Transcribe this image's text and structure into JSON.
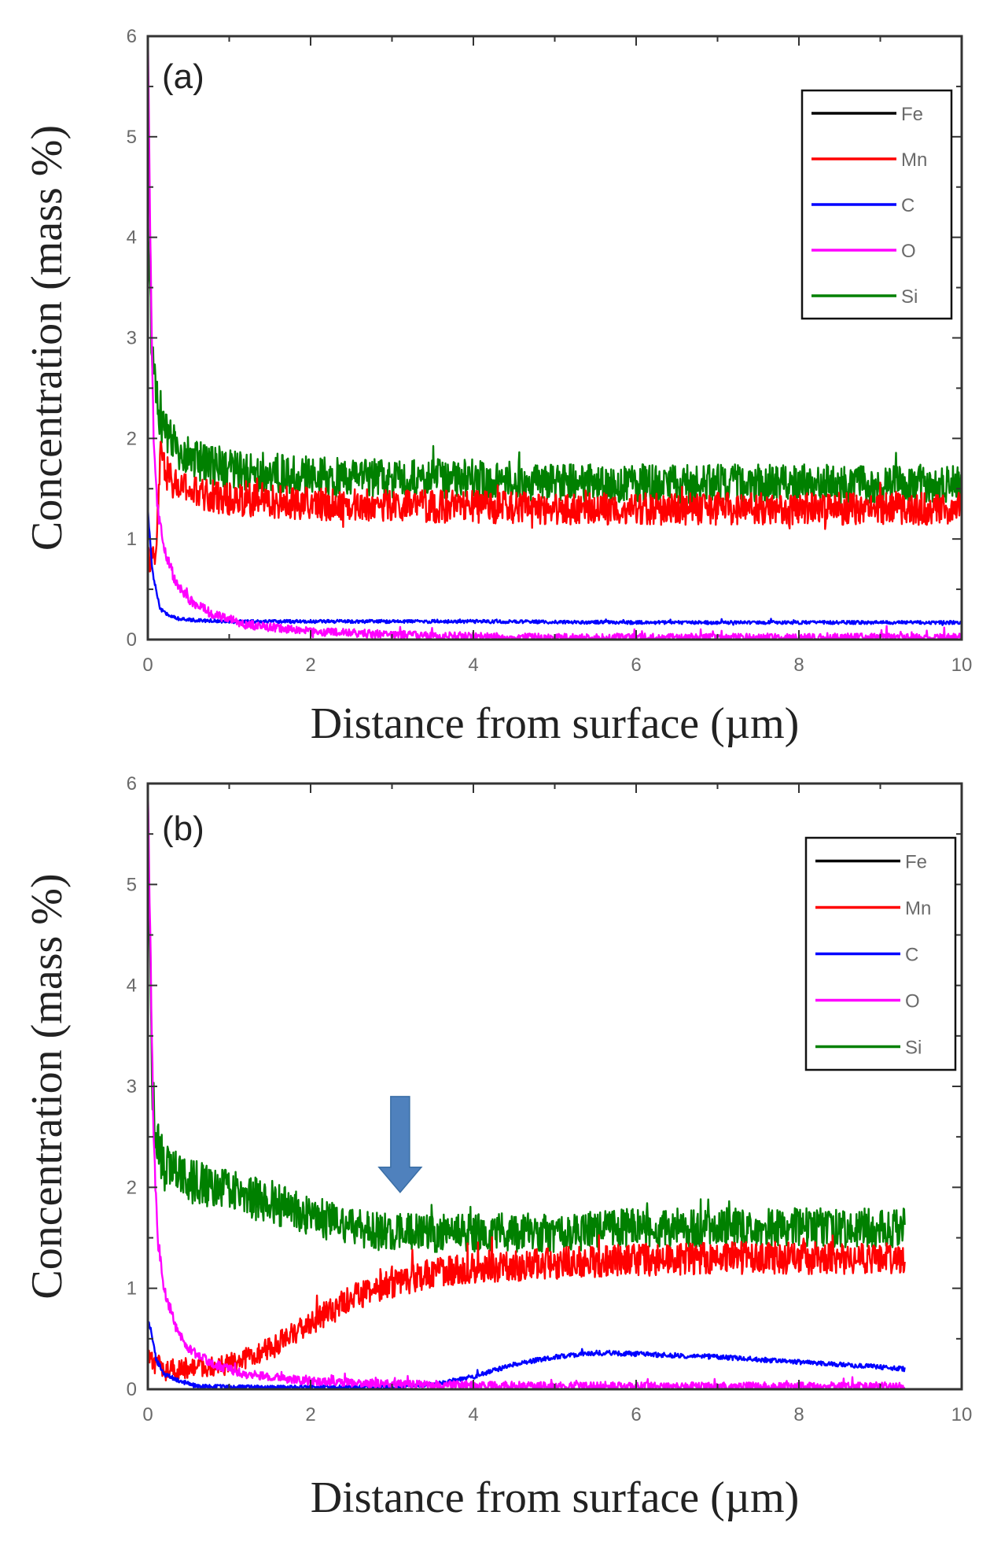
{
  "chart_data": [
    {
      "type": "line",
      "panel_label": "(a)",
      "xlabel": "Distance from surface (µm)",
      "ylabel": "Concentration (mass %)",
      "xlim": [
        0,
        10
      ],
      "ylim": [
        0,
        6
      ],
      "xticks": [
        "0",
        "2",
        "4",
        "6",
        "8",
        "10"
      ],
      "yticks": [
        "0",
        "1",
        "2",
        "3",
        "4",
        "5",
        "6"
      ],
      "legend_position": "top-right",
      "series": [
        {
          "name": "Fe",
          "color": "#000000",
          "x": [
            0,
            0.02,
            0.05
          ],
          "y": [
            6.0,
            6.0,
            6.0
          ]
        },
        {
          "name": "Mn",
          "color": "#ff0000",
          "x": [
            0.1,
            0.15,
            0.3,
            0.6,
            1,
            2,
            3,
            4,
            5,
            6,
            7,
            8,
            9,
            10
          ],
          "y": [
            0.8,
            1.8,
            1.55,
            1.45,
            1.4,
            1.35,
            1.33,
            1.32,
            1.3,
            1.3,
            1.3,
            1.3,
            1.3,
            1.3
          ],
          "noise": 0.09
        },
        {
          "name": "C",
          "color": "#0000ff",
          "x": [
            0,
            0.03,
            0.06,
            0.1,
            0.15,
            0.25,
            0.4,
            1,
            2,
            4,
            6,
            8,
            10
          ],
          "y": [
            1.3,
            0.95,
            0.65,
            0.5,
            0.3,
            0.25,
            0.2,
            0.18,
            0.18,
            0.18,
            0.17,
            0.17,
            0.17
          ],
          "noise": 0.015
        },
        {
          "name": "O",
          "color": "#ff00ff",
          "x": [
            0,
            0.03,
            0.07,
            0.12,
            0.2,
            0.35,
            0.5,
            0.8,
            1.2,
            2,
            3,
            4,
            5,
            6,
            8,
            10
          ],
          "y": [
            6.0,
            4.0,
            2.0,
            1.3,
            0.9,
            0.55,
            0.4,
            0.25,
            0.15,
            0.08,
            0.05,
            0.03,
            0.02,
            0.02,
            0.02,
            0.02
          ],
          "noise": 0.04
        },
        {
          "name": "Si",
          "color": "#008000",
          "x": [
            0,
            0.05,
            0.1,
            0.2,
            0.4,
            0.7,
            1,
            2,
            3,
            4,
            5,
            6,
            7,
            8,
            9,
            10
          ],
          "y": [
            4.2,
            2.9,
            2.4,
            2.05,
            1.85,
            1.75,
            1.7,
            1.62,
            1.6,
            1.6,
            1.55,
            1.55,
            1.55,
            1.55,
            1.55,
            1.55
          ],
          "noise": 0.1
        }
      ]
    },
    {
      "type": "line",
      "panel_label": "(b)",
      "xlabel": "Distance from surface (µm)",
      "ylabel": "Concentration (mass %)",
      "xlim": [
        0,
        10
      ],
      "ylim": [
        0,
        6
      ],
      "xticks": [
        "0",
        "2",
        "4",
        "6",
        "8",
        "10"
      ],
      "yticks": [
        "0",
        "1",
        "2",
        "3",
        "4",
        "5",
        "6"
      ],
      "legend_position": "top-right",
      "annotation": {
        "type": "arrow",
        "x": 3.1,
        "y_tip": 1.95,
        "y_tail": 2.9,
        "color": "#4f81bd"
      },
      "series": [
        {
          "name": "Fe",
          "color": "#000000",
          "x": [
            0,
            0.02,
            0.05
          ],
          "y": [
            6.0,
            6.0,
            6.0
          ]
        },
        {
          "name": "Mn",
          "color": "#ff0000",
          "x": [
            0,
            0.1,
            0.3,
            0.6,
            1,
            1.5,
            2,
            2.5,
            3,
            3.5,
            4,
            5,
            6,
            7,
            8,
            9,
            9.3
          ],
          "y": [
            0.3,
            0.25,
            0.2,
            0.2,
            0.25,
            0.4,
            0.65,
            0.9,
            1.05,
            1.15,
            1.2,
            1.25,
            1.28,
            1.3,
            1.3,
            1.3,
            1.3
          ],
          "noise": 0.09
        },
        {
          "name": "C",
          "color": "#0000ff",
          "x": [
            0,
            0.05,
            0.1,
            0.2,
            0.4,
            0.6,
            1,
            2,
            3,
            3.5,
            4,
            4.5,
            5,
            5.5,
            6,
            7,
            8,
            9,
            9.3
          ],
          "y": [
            0.7,
            0.55,
            0.3,
            0.15,
            0.08,
            0.03,
            0.02,
            0.02,
            0.02,
            0.05,
            0.12,
            0.25,
            0.32,
            0.36,
            0.35,
            0.32,
            0.27,
            0.22,
            0.2
          ],
          "noise": 0.02
        },
        {
          "name": "O",
          "color": "#ff00ff",
          "x": [
            0,
            0.03,
            0.07,
            0.12,
            0.2,
            0.35,
            0.5,
            0.8,
            1.2,
            2,
            3,
            4,
            5,
            6,
            7,
            8,
            9,
            9.3
          ],
          "y": [
            6.0,
            4.5,
            2.5,
            1.5,
            1.0,
            0.6,
            0.4,
            0.25,
            0.15,
            0.08,
            0.05,
            0.04,
            0.03,
            0.03,
            0.03,
            0.03,
            0.03,
            0.03
          ],
          "noise": 0.04
        },
        {
          "name": "Si",
          "color": "#008000",
          "x": [
            0,
            0.05,
            0.1,
            0.2,
            0.4,
            0.8,
            1.5,
            2.5,
            3,
            4,
            5,
            6,
            7,
            8,
            9,
            9.3
          ],
          "y": [
            5.6,
            3.0,
            2.5,
            2.2,
            2.1,
            2.0,
            1.85,
            1.6,
            1.55,
            1.55,
            1.55,
            1.6,
            1.6,
            1.6,
            1.6,
            1.6
          ],
          "noise": 0.1
        }
      ]
    }
  ]
}
